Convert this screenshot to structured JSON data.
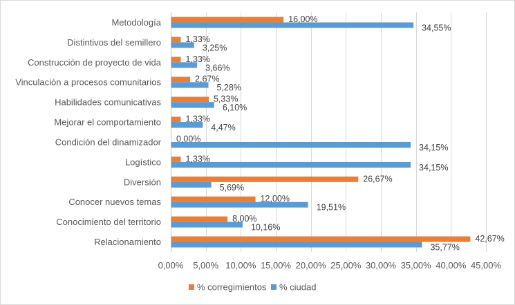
{
  "chart_data": {
    "type": "bar",
    "orientation": "horizontal",
    "title": "",
    "xlabel": "",
    "ylabel": "",
    "categories": [
      "Metodología",
      "Distintivos del semillero",
      "Construcción de proyecto de vida",
      "Vinculación a procesos comunitarios",
      "Habilidades comunicativas",
      "Mejorar el comportamiento",
      "Condición del dinamizador",
      "Logístico",
      "Diversión",
      "Conocer nuevos temas",
      "Conocimiento del territorio",
      "Relacionamiento"
    ],
    "series": [
      {
        "name": "% corregimientos",
        "color": "#ED7D31",
        "values": [
          16.0,
          1.33,
          1.33,
          2.67,
          5.33,
          1.33,
          0.0,
          1.33,
          26.67,
          12.0,
          8.0,
          42.67
        ],
        "labels": [
          "16,00%",
          "1,33%",
          "1,33%",
          "2,67%",
          "5,33%",
          "1,33%",
          "0,00%",
          "1,33%",
          "26,67%",
          "12,00%",
          "8,00%",
          "42,67%"
        ]
      },
      {
        "name": "% ciudad",
        "color": "#5B9BD5",
        "values": [
          34.55,
          3.25,
          3.66,
          5.28,
          6.1,
          4.47,
          34.15,
          34.15,
          5.69,
          19.51,
          10.16,
          35.77
        ],
        "labels": [
          "34,55%",
          "3,25%",
          "3,66%",
          "5,28%",
          "6,10%",
          "4,47%",
          "34,15%",
          "34,15%",
          "5,69%",
          "19,51%",
          "10,16%",
          "35,77%"
        ]
      }
    ],
    "xlim": [
      0,
      45
    ],
    "xticks": [
      0,
      5,
      10,
      15,
      20,
      25,
      30,
      35,
      40,
      45
    ],
    "xtick_labels": [
      "0,00%",
      "5,00%",
      "10,00%",
      "15,00%",
      "20,00%",
      "25,00%",
      "30,00%",
      "35,00%",
      "40,00%",
      "45,00%"
    ],
    "grid": "vertical",
    "gridline_color": "#D9D9D9",
    "legend_position": "bottom"
  }
}
